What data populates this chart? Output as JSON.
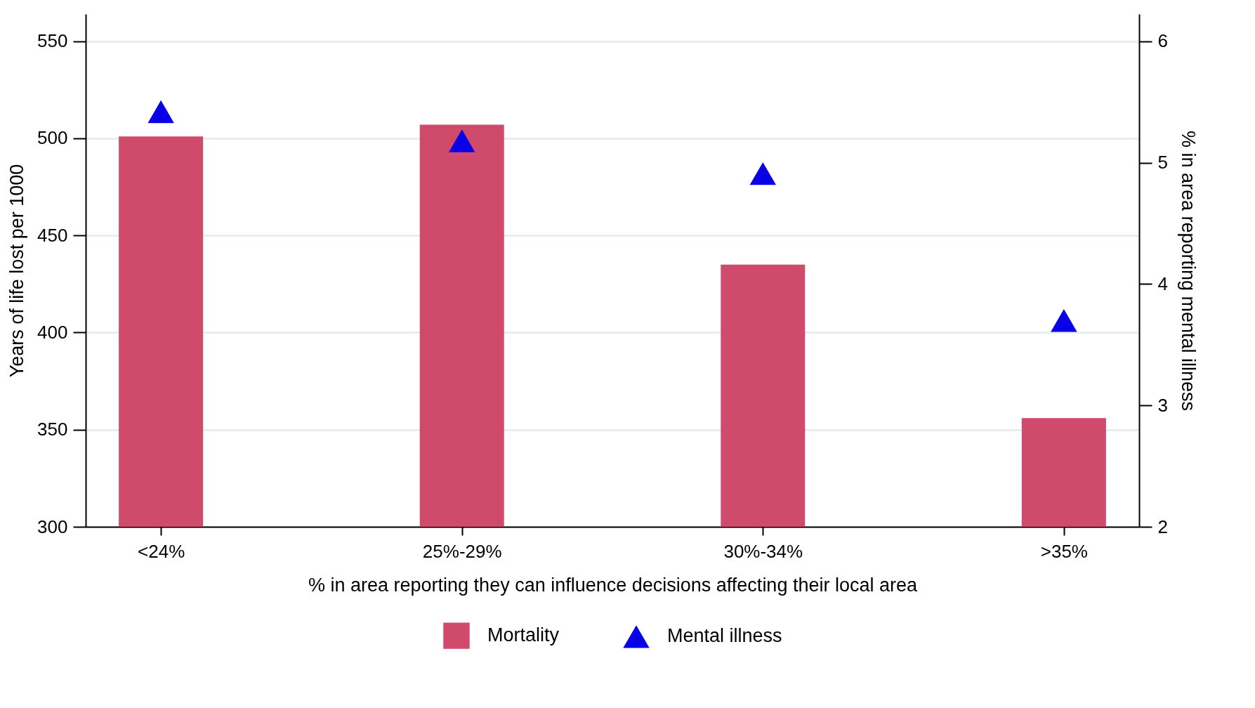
{
  "chart_data": {
    "type": "bar",
    "xlabel": "% in area reporting  they can influence decisions affecting their local area",
    "ylabel": "Years of life lost per 1000",
    "y2label": "% in area reporting mental illness",
    "categories": [
      "<24%",
      "25%-29%",
      "30%-34%",
      ">35%"
    ],
    "series": [
      {
        "name": "Mortality",
        "color": "#d04a6c",
        "values": [
          501,
          507,
          435,
          356
        ]
      },
      {
        "name": "Mental illness",
        "type": "scatter",
        "axis": "y2",
        "color": "#0a00e8",
        "values": [
          5.42,
          5.18,
          4.91,
          3.7
        ]
      }
    ],
    "ylim": [
      300,
      564
    ],
    "yticks": [
      300,
      350,
      400,
      450,
      500,
      550
    ],
    "y2lim": [
      2,
      6.224
    ],
    "y2ticks": [
      2,
      3,
      4,
      5,
      6
    ],
    "grid": "y",
    "legend": "bottom",
    "marker": "triangle"
  }
}
